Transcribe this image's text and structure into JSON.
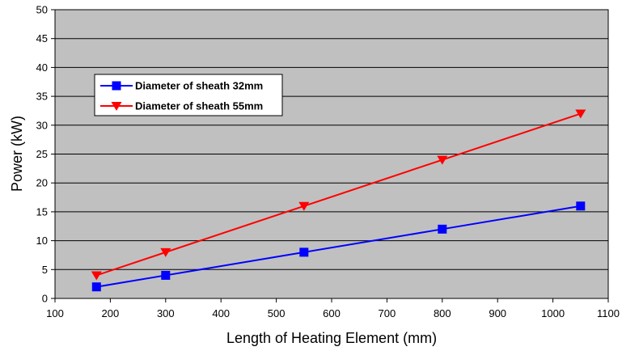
{
  "chart_data": {
    "type": "line",
    "xlabel": "Length of Heating Element (mm)",
    "ylabel": "Power (kW)",
    "xlim": [
      100,
      1100
    ],
    "ylim": [
      0,
      50
    ],
    "x_ticks": [
      100,
      200,
      300,
      400,
      500,
      600,
      700,
      800,
      900,
      1000,
      1100
    ],
    "y_ticks": [
      0,
      5,
      10,
      15,
      20,
      25,
      30,
      35,
      40,
      45,
      50
    ],
    "grid": "horizontal",
    "plot_background": "#c0c0c0",
    "legend_position": "upper-left",
    "series": [
      {
        "name": "Diameter of sheath 32mm",
        "color": "#0000ff",
        "marker": "square",
        "x": [
          175,
          300,
          550,
          800,
          1050
        ],
        "y": [
          2,
          4,
          8,
          12,
          16
        ]
      },
      {
        "name": "Diameter of sheath 55mm",
        "color": "#ff0000",
        "marker": "triangle-down",
        "x": [
          175,
          300,
          550,
          800,
          1050
        ],
        "y": [
          4,
          8,
          16,
          24,
          32
        ]
      }
    ]
  }
}
